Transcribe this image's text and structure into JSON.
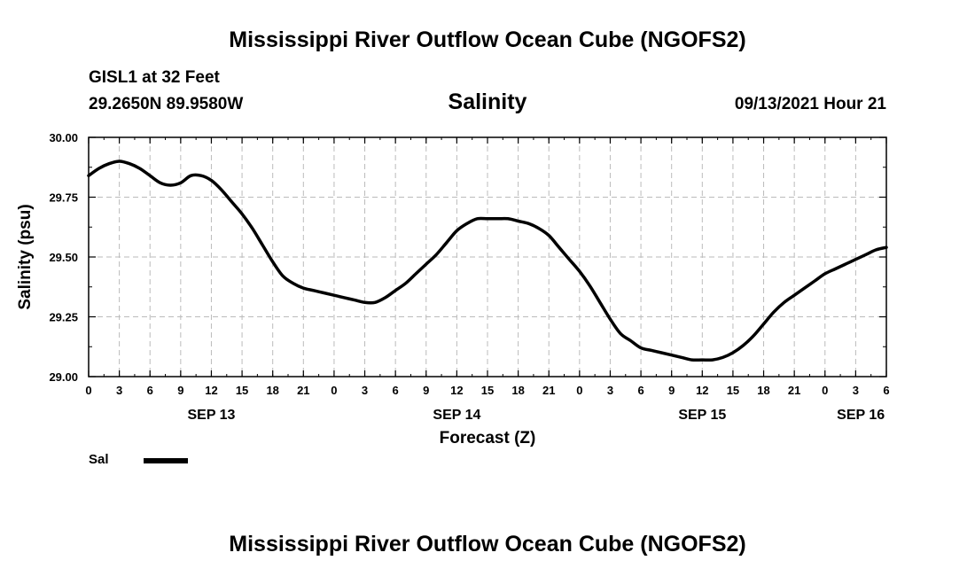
{
  "title": "Mississippi River Outflow Ocean Cube (NGOFS2)",
  "footer_title": "Mississippi River Outflow Ocean Cube (NGOFS2)",
  "station": {
    "name": "GISL1 at 32 Feet",
    "coords": "29.2650N  89.9580W"
  },
  "variable": "Salinity",
  "timestamp": "09/13/2021 Hour 21",
  "legend": {
    "label": "Sal",
    "color": "#000000"
  },
  "chart_data": {
    "type": "line",
    "title": "Salinity",
    "xlabel": "Forecast (Z)",
    "ylabel": "Salinity (psu)",
    "xlim": [
      0,
      78
    ],
    "ylim": [
      29.0,
      30.0
    ],
    "grid": true,
    "x_ticks": [
      0,
      3,
      6,
      9,
      12,
      15,
      18,
      21,
      24,
      27,
      30,
      33,
      36,
      39,
      42,
      45,
      48,
      51,
      54,
      57,
      60,
      63,
      66,
      69,
      72,
      75,
      78
    ],
    "x_tick_labels": [
      "0",
      "3",
      "6",
      "9",
      "12",
      "15",
      "18",
      "21",
      "0",
      "3",
      "6",
      "9",
      "12",
      "15",
      "18",
      "21",
      "0",
      "3",
      "6",
      "9",
      "12",
      "15",
      "18",
      "21",
      "0",
      "3",
      "6"
    ],
    "date_labels": [
      {
        "x": 12,
        "label": "SEP 13"
      },
      {
        "x": 36,
        "label": "SEP 14"
      },
      {
        "x": 60,
        "label": "SEP 15"
      },
      {
        "x": 75.5,
        "label": "SEP 16"
      }
    ],
    "y_ticks": [
      29.0,
      29.25,
      29.5,
      29.75,
      30.0
    ],
    "y_tick_labels": [
      "29.00",
      "29.25",
      "29.50",
      "29.75",
      "30.00"
    ],
    "series": [
      {
        "name": "Sal",
        "x": [
          0,
          1,
          2,
          3,
          4,
          5,
          6,
          7,
          8,
          9,
          10,
          11,
          12,
          13,
          14,
          15,
          16,
          17,
          18,
          19,
          20,
          21,
          22,
          23,
          24,
          25,
          26,
          27,
          28,
          29,
          30,
          31,
          32,
          33,
          34,
          35,
          36,
          37,
          38,
          39,
          40,
          41,
          42,
          43,
          44,
          45,
          46,
          47,
          48,
          49,
          50,
          51,
          52,
          53,
          54,
          55,
          56,
          57,
          58,
          59,
          60,
          61,
          62,
          63,
          64,
          65,
          66,
          67,
          68,
          69,
          70,
          71,
          72,
          73,
          74,
          75,
          76,
          77,
          78
        ],
        "values": [
          29.84,
          29.87,
          29.89,
          29.9,
          29.89,
          29.87,
          29.84,
          29.81,
          29.8,
          29.81,
          29.84,
          29.84,
          29.82,
          29.78,
          29.73,
          29.68,
          29.62,
          29.55,
          29.48,
          29.42,
          29.39,
          29.37,
          29.36,
          29.35,
          29.34,
          29.33,
          29.32,
          29.31,
          29.31,
          29.33,
          29.36,
          29.39,
          29.43,
          29.47,
          29.51,
          29.56,
          29.61,
          29.64,
          29.66,
          29.66,
          29.66,
          29.66,
          29.65,
          29.64,
          29.62,
          29.59,
          29.54,
          29.49,
          29.44,
          29.38,
          29.31,
          29.24,
          29.18,
          29.15,
          29.12,
          29.11,
          29.1,
          29.09,
          29.08,
          29.07,
          29.07,
          29.07,
          29.08,
          29.1,
          29.13,
          29.17,
          29.22,
          29.27,
          29.31,
          29.34,
          29.37,
          29.4,
          29.43,
          29.45,
          29.47,
          29.49,
          29.51,
          29.53,
          29.54
        ]
      }
    ]
  }
}
